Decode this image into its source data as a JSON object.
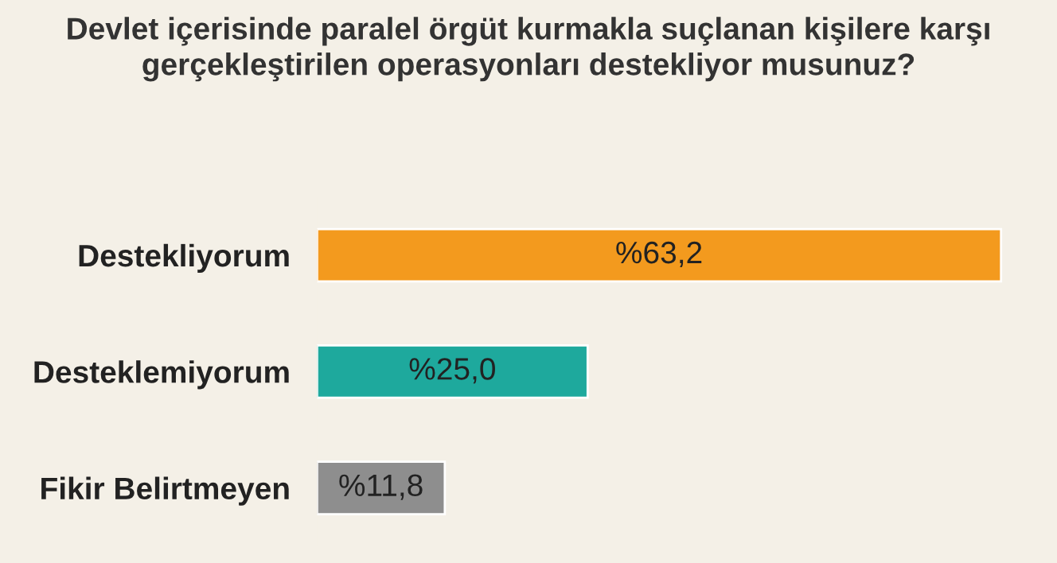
{
  "chart_data": {
    "type": "bar",
    "orientation": "horizontal",
    "title": "Devlet içerisinde paralel örgüt kurmakla suçlanan kişilere karşı\ngerçekleştirilen operasyonları destekliyor musunuz?",
    "categories": [
      "Destekliyorum",
      "Desteklemiyorum",
      "Fikir Belirtmeyen"
    ],
    "values": [
      63.2,
      25.0,
      11.8
    ],
    "colors": [
      "#f39a1e",
      "#1ea99d",
      "#8e8e8e"
    ],
    "value_labels": [
      "%63,2",
      "%25,0",
      "%11,8"
    ],
    "tick_labels": "y",
    "grid": false,
    "legend": false
  }
}
